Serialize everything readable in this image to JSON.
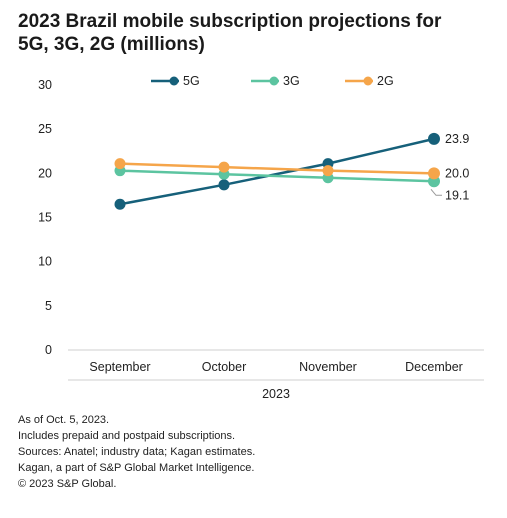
{
  "title_line1": "2023 Brazil mobile subscription projections for",
  "title_line2": "5G, 3G, 2G (millions)",
  "chart_data": {
    "type": "line",
    "categories": [
      "September",
      "October",
      "November",
      "December"
    ],
    "x_group_label": "2023",
    "ylim": [
      0,
      30
    ],
    "yticks": [
      0,
      5,
      10,
      15,
      20,
      25,
      30
    ],
    "grid": false,
    "legend_position": "top",
    "series": [
      {
        "name": "5G",
        "color": "#16607a",
        "values": [
          16.5,
          18.7,
          21.1,
          23.9
        ],
        "end_label": "23.9"
      },
      {
        "name": "3G",
        "color": "#5cc4a0",
        "values": [
          20.3,
          19.9,
          19.5,
          19.1
        ],
        "end_label": "19.1"
      },
      {
        "name": "2G",
        "color": "#f5a54a",
        "values": [
          21.1,
          20.7,
          20.3,
          20.0
        ],
        "end_label": "20.0"
      }
    ]
  },
  "notes": [
    "As of Oct. 5, 2023.",
    "Includes prepaid and postpaid subscriptions.",
    "Sources: Anatel; industry data; Kagan estimates.",
    "Kagan, a part of S&P Global Market Intelligence.",
    "© 2023 S&P Global."
  ]
}
